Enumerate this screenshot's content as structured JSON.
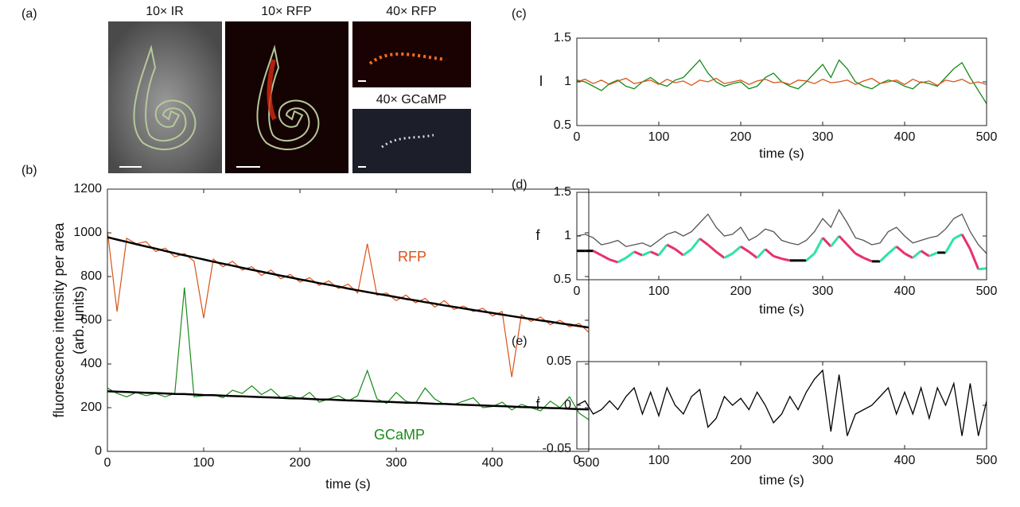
{
  "figure_a": {
    "panel_label": "(a)",
    "image_titles": [
      "10× IR",
      "10× RFP",
      "40× RFP",
      "40× GCaMP"
    ]
  },
  "chart_data": [
    {
      "type": "line",
      "panel_label": "(b)",
      "xlabel": "time (s)",
      "ylabel": [
        "fluorescence intensity per area",
        "(arb. units)"
      ],
      "xlim": [
        0,
        500
      ],
      "xticks": [
        0,
        100,
        200,
        300,
        400,
        500
      ],
      "ylim": [
        0,
        1200
      ],
      "yticks": [
        0,
        200,
        400,
        600,
        800,
        1000,
        1200
      ],
      "x": [
        0,
        10,
        20,
        30,
        40,
        50,
        60,
        70,
        80,
        90,
        100,
        110,
        120,
        130,
        140,
        150,
        160,
        170,
        180,
        190,
        200,
        210,
        220,
        230,
        240,
        250,
        260,
        270,
        280,
        290,
        300,
        310,
        320,
        330,
        340,
        350,
        360,
        370,
        380,
        390,
        400,
        410,
        420,
        430,
        440,
        450,
        460,
        470,
        480,
        490,
        500
      ],
      "series": [
        {
          "name": "RFP",
          "color": "#d95319",
          "values": [
            1010,
            640,
            975,
            950,
            960,
            915,
            930,
            890,
            905,
            870,
            610,
            880,
            845,
            870,
            830,
            845,
            805,
            830,
            790,
            810,
            775,
            795,
            760,
            780,
            745,
            765,
            725,
            950,
            715,
            725,
            690,
            715,
            680,
            700,
            660,
            690,
            650,
            665,
            640,
            655,
            620,
            640,
            340,
            625,
            595,
            615,
            580,
            600,
            570,
            585,
            545
          ]
        },
        {
          "color": "#000000",
          "values": [
            980,
            969,
            959,
            948,
            938,
            928,
            917,
            907,
            897,
            888,
            878,
            868,
            859,
            850,
            840,
            831,
            822,
            813,
            804,
            796,
            787,
            779,
            770,
            762,
            754,
            745,
            737,
            729,
            721,
            714,
            706,
            698,
            691,
            683,
            676,
            668,
            661,
            654,
            647,
            640,
            633,
            626,
            619,
            612,
            606,
            599,
            593,
            586,
            580,
            573,
            567
          ]
        },
        {
          "name": "GCaMP",
          "color": "#1a8a1a",
          "values": [
            290,
            265,
            250,
            270,
            255,
            265,
            250,
            265,
            750,
            250,
            255,
            260,
            245,
            280,
            265,
            300,
            260,
            285,
            245,
            255,
            240,
            270,
            225,
            240,
            255,
            230,
            255,
            370,
            240,
            220,
            270,
            230,
            220,
            290,
            240,
            215,
            215,
            230,
            245,
            200,
            205,
            225,
            190,
            215,
            200,
            185,
            230,
            200,
            250,
            175,
            145
          ]
        },
        {
          "color": "#000000",
          "values": [
            275,
            273,
            272,
            270,
            268,
            267,
            265,
            263,
            262,
            260,
            258,
            257,
            255,
            253,
            252,
            250,
            248,
            247,
            245,
            243,
            242,
            240,
            238,
            237,
            235,
            233,
            232,
            230,
            228,
            227,
            225,
            223,
            222,
            220,
            218,
            217,
            215,
            213,
            212,
            210,
            208,
            207,
            205,
            203,
            202,
            200,
            198,
            197,
            195,
            193,
            192
          ]
        }
      ]
    },
    {
      "type": "line",
      "panel_label": "(c)",
      "xlabel": "time (s)",
      "ylabel": [
        "I"
      ],
      "xlim": [
        0,
        500
      ],
      "xticks": [
        0,
        100,
        200,
        300,
        400,
        500
      ],
      "ylim": [
        0.5,
        1.5
      ],
      "yticks": [
        0.5,
        1,
        1.5
      ],
      "x": [
        0,
        10,
        20,
        30,
        40,
        50,
        60,
        70,
        80,
        90,
        100,
        110,
        120,
        130,
        140,
        150,
        160,
        170,
        180,
        190,
        200,
        210,
        220,
        230,
        240,
        250,
        260,
        270,
        280,
        290,
        300,
        310,
        320,
        330,
        340,
        350,
        360,
        370,
        380,
        390,
        400,
        410,
        420,
        430,
        440,
        450,
        460,
        470,
        480,
        490,
        500
      ],
      "series": [
        {
          "color": "#1a8a1a",
          "values": [
            1.02,
            1.0,
            0.95,
            0.9,
            0.98,
            1.02,
            0.95,
            0.92,
            1.0,
            1.05,
            0.98,
            0.95,
            1.02,
            1.05,
            1.15,
            1.25,
            1.1,
            1.0,
            0.95,
            0.98,
            1.0,
            0.92,
            0.95,
            1.05,
            1.1,
            1.0,
            0.95,
            0.92,
            1.0,
            1.1,
            1.2,
            1.05,
            1.25,
            1.15,
            1.0,
            0.95,
            0.92,
            0.98,
            1.02,
            1.0,
            0.95,
            0.92,
            1.0,
            0.98,
            0.95,
            1.05,
            1.15,
            1.22,
            1.05,
            0.9,
            0.75
          ]
        },
        {
          "color": "#d95319",
          "values": [
            1.0,
            1.03,
            0.98,
            1.02,
            0.97,
            1.01,
            1.04,
            0.98,
            1.0,
            1.02,
            0.97,
            1.03,
            0.99,
            1.01,
            0.96,
            1.02,
            1.0,
            1.04,
            0.98,
            1.0,
            1.02,
            0.97,
            1.01,
            1.03,
            0.99,
            1.0,
            0.97,
            1.02,
            1.01,
            0.98,
            1.03,
            0.99,
            1.0,
            1.02,
            0.97,
            1.01,
            1.04,
            0.98,
            1.0,
            1.02,
            0.97,
            1.03,
            0.99,
            1.01,
            0.96,
            1.02,
            1.0,
            1.03,
            0.98,
            1.0,
            0.97
          ]
        }
      ]
    },
    {
      "type": "line",
      "panel_label": "(d)",
      "xlabel": "time (s)",
      "ylabel": [
        "f"
      ],
      "xlim": [
        0,
        500
      ],
      "xticks": [
        0,
        100,
        200,
        300,
        400,
        500
      ],
      "ylim": [
        0.5,
        1.5
      ],
      "yticks": [
        0.5,
        1,
        1.5
      ],
      "x": [
        0,
        10,
        20,
        30,
        40,
        50,
        60,
        70,
        80,
        90,
        100,
        110,
        120,
        130,
        140,
        150,
        160,
        170,
        180,
        190,
        200,
        210,
        220,
        230,
        240,
        250,
        260,
        270,
        280,
        290,
        300,
        310,
        320,
        330,
        340,
        350,
        360,
        370,
        380,
        390,
        400,
        410,
        420,
        430,
        440,
        450,
        460,
        470,
        480,
        490,
        500
      ],
      "series": [
        {
          "color": "#555555",
          "values": [
            1.0,
            1.02,
            0.98,
            0.9,
            0.92,
            0.95,
            0.88,
            0.9,
            0.92,
            0.88,
            0.95,
            1.02,
            1.05,
            1.0,
            1.05,
            1.15,
            1.25,
            1.1,
            1.0,
            1.02,
            1.1,
            0.95,
            1.0,
            1.08,
            1.05,
            0.95,
            0.92,
            0.9,
            0.95,
            1.05,
            1.2,
            1.1,
            1.3,
            1.15,
            0.98,
            0.95,
            0.9,
            0.92,
            1.05,
            1.1,
            1.0,
            0.92,
            0.95,
            0.98,
            1.0,
            1.08,
            1.2,
            1.25,
            1.05,
            0.9,
            0.8
          ]
        },
        {
          "colors": {
            "rise": "#2ee3a8",
            "fall": "#e8316a",
            "flat": "#000000"
          },
          "values": [
            0.83,
            0.83,
            0.83,
            0.78,
            0.73,
            0.7,
            0.75,
            0.82,
            0.78,
            0.82,
            0.78,
            0.9,
            0.85,
            0.78,
            0.85,
            0.97,
            0.9,
            0.82,
            0.75,
            0.8,
            0.88,
            0.82,
            0.75,
            0.85,
            0.77,
            0.74,
            0.72,
            0.72,
            0.72,
            0.8,
            0.98,
            0.88,
            1.0,
            0.9,
            0.8,
            0.75,
            0.71,
            0.71,
            0.8,
            0.88,
            0.8,
            0.75,
            0.83,
            0.77,
            0.81,
            0.81,
            0.97,
            1.02,
            0.85,
            0.62,
            0.63
          ]
        }
      ]
    },
    {
      "type": "line",
      "panel_label": "(e)",
      "xlabel": "time (s)",
      "ylabel": [
        "ḟ"
      ],
      "xlim": [
        0,
        500
      ],
      "xticks": [
        0,
        100,
        200,
        300,
        400,
        500
      ],
      "ylim": [
        -0.05,
        0.05
      ],
      "yticks": [
        -0.05,
        0,
        0.05
      ],
      "x": [
        0,
        10,
        20,
        30,
        40,
        50,
        60,
        70,
        80,
        90,
        100,
        110,
        120,
        130,
        140,
        150,
        160,
        170,
        180,
        190,
        200,
        210,
        220,
        230,
        240,
        250,
        260,
        270,
        280,
        290,
        300,
        310,
        320,
        330,
        340,
        350,
        360,
        370,
        380,
        390,
        400,
        410,
        420,
        430,
        440,
        450,
        460,
        470,
        480,
        490,
        500
      ],
      "series": [
        {
          "color": "#000000",
          "values": [
            0,
            0.005,
            -0.01,
            -0.005,
            0.005,
            -0.005,
            0.01,
            0.02,
            -0.01,
            0.015,
            -0.012,
            0.02,
            0.0,
            -0.01,
            0.01,
            0.018,
            -0.025,
            -0.015,
            0.01,
            0.0,
            0.008,
            -0.005,
            0.015,
            0.0,
            -0.02,
            -0.01,
            0.01,
            -0.005,
            0.015,
            0.03,
            0.04,
            -0.03,
            0.035,
            -0.035,
            -0.01,
            -0.005,
            0.0,
            0.01,
            0.02,
            -0.01,
            0.015,
            -0.01,
            0.02,
            -0.015,
            0.02,
            0.0,
            0.025,
            -0.035,
            0.025,
            -0.035,
            0.005
          ]
        }
      ]
    }
  ]
}
